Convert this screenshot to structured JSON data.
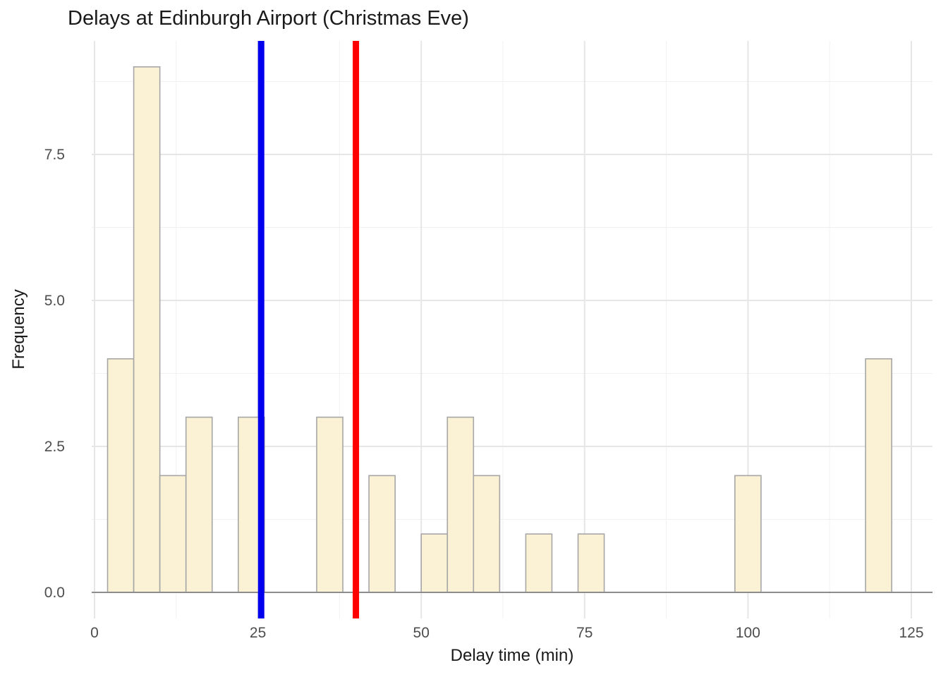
{
  "chart_data": {
    "type": "bar",
    "subtype": "histogram",
    "title": "Delays at Edinburgh Airport (Christmas Eve)",
    "xlabel": "Delay time (min)",
    "ylabel": "Frequency",
    "x_ticks": [
      {
        "value": 0,
        "label": "0"
      },
      {
        "value": 25,
        "label": "25"
      },
      {
        "value": 50,
        "label": "50"
      },
      {
        "value": 75,
        "label": "75"
      },
      {
        "value": 100,
        "label": "100"
      },
      {
        "value": 125,
        "label": "125"
      }
    ],
    "y_ticks": [
      {
        "value": 0,
        "label": "0.0"
      },
      {
        "value": 2.5,
        "label": "2.5"
      },
      {
        "value": 5,
        "label": "5.0"
      },
      {
        "value": 7.5,
        "label": "7.5"
      }
    ],
    "minor_x_ticks": [
      12.5,
      37.5,
      62.5,
      87.5,
      112.5
    ],
    "minor_y_ticks": [
      1.25,
      3.75,
      6.25,
      8.75
    ],
    "xlim": [
      -0.5,
      128.5
    ],
    "ylim": [
      -0.45,
      9.45
    ],
    "bin_width": 4,
    "bins": [
      {
        "x0": 2,
        "x1": 6,
        "count": 4
      },
      {
        "x0": 6,
        "x1": 10,
        "count": 9
      },
      {
        "x0": 10,
        "x1": 14,
        "count": 2
      },
      {
        "x0": 14,
        "x1": 18,
        "count": 3
      },
      {
        "x0": 22,
        "x1": 26,
        "count": 3
      },
      {
        "x0": 34,
        "x1": 38,
        "count": 3
      },
      {
        "x0": 42,
        "x1": 46,
        "count": 2
      },
      {
        "x0": 50,
        "x1": 54,
        "count": 1
      },
      {
        "x0": 54,
        "x1": 58,
        "count": 3
      },
      {
        "x0": 58,
        "x1": 62,
        "count": 2
      },
      {
        "x0": 66,
        "x1": 70,
        "count": 1
      },
      {
        "x0": 74,
        "x1": 78,
        "count": 1
      },
      {
        "x0": 98,
        "x1": 102,
        "count": 2
      },
      {
        "x0": 118,
        "x1": 122,
        "count": 4
      }
    ],
    "vlines": [
      {
        "x": 25.5,
        "color": "#0000ee",
        "name": "median-line"
      },
      {
        "x": 40,
        "color": "#ff0000",
        "name": "mean-line"
      }
    ],
    "colors": {
      "bar_fill": "#fbf2d5",
      "bar_stroke": "#a6a6a6",
      "grid_major": "#e6e6e6",
      "grid_minor": "#f1f1f1",
      "baseline": "#8c8c8c",
      "tick_text": "#4d4d4d"
    },
    "grid": true,
    "legend": "none"
  }
}
